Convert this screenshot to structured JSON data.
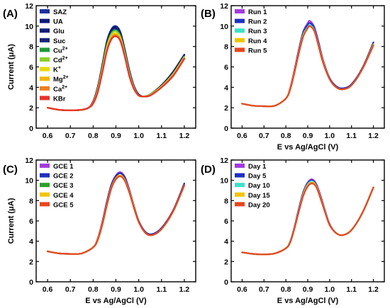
{
  "chart_data": [
    {
      "type": "line",
      "panel_label": "(A)",
      "xlabel": "",
      "ylabel": "Current (μA)",
      "xlim": [
        0.55,
        1.25
      ],
      "ylim": [
        0,
        12
      ],
      "xticks": [
        "0.6",
        "0.7",
        "0.8",
        "0.9",
        "1.0",
        "1.1",
        "1.2"
      ],
      "yticks": [
        "0",
        "2",
        "4",
        "6",
        "8",
        "10",
        "12"
      ],
      "legend_position": "top-left",
      "x": [
        0.6,
        0.65,
        0.7,
        0.75,
        0.78,
        0.8,
        0.82,
        0.84,
        0.86,
        0.88,
        0.9,
        0.92,
        0.94,
        0.96,
        0.98,
        1.0,
        1.02,
        1.05,
        1.1,
        1.15,
        1.2
      ],
      "series": [
        {
          "name": "SAZ",
          "color": "#1f2fa0",
          "values": [
            2.0,
            1.8,
            1.75,
            1.8,
            2.0,
            2.6,
            4.0,
            6.2,
            8.5,
            9.7,
            10.0,
            9.4,
            7.6,
            5.6,
            4.1,
            3.3,
            3.1,
            3.3,
            4.2,
            5.5,
            7.2
          ]
        },
        {
          "name": "UA",
          "color": "#0d1a7a",
          "values": [
            2.0,
            1.8,
            1.75,
            1.8,
            2.0,
            2.6,
            4.0,
            6.1,
            8.4,
            9.6,
            9.9,
            9.3,
            7.5,
            5.5,
            4.0,
            3.3,
            3.1,
            3.3,
            4.2,
            5.5,
            7.2
          ]
        },
        {
          "name": "Glu",
          "color": "#14207a",
          "values": [
            2.0,
            1.8,
            1.75,
            1.8,
            2.0,
            2.6,
            4.0,
            6.0,
            8.3,
            9.5,
            9.8,
            9.2,
            7.4,
            5.4,
            4.0,
            3.3,
            3.1,
            3.3,
            4.2,
            5.4,
            7.1
          ]
        },
        {
          "name": "Suc",
          "color": "#1a2478",
          "values": [
            2.0,
            1.8,
            1.75,
            1.8,
            2.0,
            2.6,
            3.9,
            6.0,
            8.2,
            9.4,
            9.7,
            9.1,
            7.3,
            5.4,
            4.0,
            3.3,
            3.1,
            3.3,
            4.2,
            5.4,
            7.1
          ]
        },
        {
          "name": "Cu2+",
          "color": "#1e9a3a",
          "values": [
            2.0,
            1.8,
            1.75,
            1.8,
            2.0,
            2.5,
            3.8,
            5.9,
            8.1,
            9.3,
            9.6,
            9.0,
            7.3,
            5.3,
            3.9,
            3.2,
            3.1,
            3.3,
            4.1,
            5.3,
            7.0
          ]
        },
        {
          "name": "Cd2+",
          "color": "#8ad12a",
          "values": [
            2.0,
            1.8,
            1.75,
            1.8,
            2.0,
            2.5,
            3.8,
            5.8,
            8.0,
            9.2,
            9.5,
            8.9,
            7.2,
            5.3,
            3.9,
            3.2,
            3.1,
            3.3,
            4.1,
            5.3,
            7.0
          ]
        },
        {
          "name": "K+",
          "color": "#e7d900",
          "values": [
            2.0,
            1.8,
            1.75,
            1.8,
            2.0,
            2.5,
            3.7,
            5.7,
            7.8,
            9.0,
            9.3,
            8.8,
            7.1,
            5.2,
            3.9,
            3.2,
            3.1,
            3.2,
            4.1,
            5.2,
            6.9
          ]
        },
        {
          "name": "Mg2+",
          "color": "#f2b600",
          "values": [
            2.0,
            1.8,
            1.75,
            1.8,
            2.0,
            2.5,
            3.7,
            5.6,
            7.7,
            8.9,
            9.2,
            8.7,
            7.0,
            5.1,
            3.8,
            3.2,
            3.1,
            3.2,
            4.0,
            5.2,
            6.9
          ]
        },
        {
          "name": "Ca2+",
          "color": "#f07d1c",
          "values": [
            2.0,
            1.8,
            1.75,
            1.8,
            2.0,
            2.5,
            3.6,
            5.5,
            7.6,
            8.8,
            9.1,
            8.6,
            6.9,
            5.1,
            3.8,
            3.2,
            3.1,
            3.2,
            4.0,
            5.1,
            6.8
          ]
        },
        {
          "name": "KBr",
          "color": "#e8322a",
          "values": [
            2.0,
            1.8,
            1.75,
            1.8,
            2.0,
            2.4,
            3.5,
            5.4,
            7.5,
            8.7,
            9.0,
            8.5,
            6.9,
            5.0,
            3.8,
            3.2,
            3.1,
            3.2,
            4.0,
            5.1,
            6.8
          ]
        }
      ]
    },
    {
      "type": "line",
      "panel_label": "(B)",
      "xlabel": "E vs Ag/AgCl (V)",
      "ylabel": "",
      "xlim": [
        0.55,
        1.25
      ],
      "ylim": [
        0,
        12
      ],
      "xticks": [
        "0.6",
        "0.7",
        "0.8",
        "0.9",
        "1.0",
        "1.1",
        "1.2"
      ],
      "yticks": [
        "0",
        "2",
        "4",
        "6",
        "8",
        "10",
        "12"
      ],
      "legend_position": "top-left",
      "x": [
        0.6,
        0.65,
        0.7,
        0.75,
        0.8,
        0.82,
        0.84,
        0.86,
        0.88,
        0.9,
        0.91,
        0.93,
        0.95,
        0.97,
        1.0,
        1.03,
        1.06,
        1.1,
        1.15,
        1.2
      ],
      "series": [
        {
          "name": "Run 1",
          "color": "#a23be0",
          "values": [
            2.4,
            2.2,
            2.15,
            2.2,
            2.9,
            4.0,
            5.8,
            7.8,
            9.5,
            10.3,
            10.5,
            9.9,
            8.4,
            6.7,
            4.9,
            4.1,
            3.9,
            4.3,
            5.9,
            8.4
          ]
        },
        {
          "name": "Run 2",
          "color": "#1f2fbf",
          "values": [
            2.4,
            2.2,
            2.15,
            2.2,
            2.9,
            3.9,
            5.7,
            7.7,
            9.4,
            10.1,
            10.3,
            9.8,
            8.3,
            6.6,
            4.9,
            4.1,
            3.9,
            4.3,
            5.9,
            8.4
          ]
        },
        {
          "name": "Run 3",
          "color": "#3fe0c8",
          "values": [
            2.4,
            2.2,
            2.15,
            2.2,
            2.9,
            3.9,
            5.6,
            7.5,
            9.2,
            9.9,
            10.1,
            9.6,
            8.1,
            6.5,
            4.8,
            4.0,
            3.8,
            4.2,
            5.8,
            8.2
          ]
        },
        {
          "name": "Run 4",
          "color": "#f2c400",
          "values": [
            2.4,
            2.2,
            2.15,
            2.2,
            2.9,
            3.9,
            5.6,
            7.5,
            9.1,
            9.8,
            10.0,
            9.5,
            8.1,
            6.5,
            4.8,
            4.0,
            3.8,
            4.2,
            5.8,
            8.2
          ]
        },
        {
          "name": "Run 5",
          "color": "#e8461e",
          "values": [
            2.4,
            2.2,
            2.15,
            2.2,
            2.9,
            3.8,
            5.5,
            7.4,
            9.0,
            9.8,
            10.0,
            9.5,
            8.0,
            6.4,
            4.8,
            4.0,
            3.8,
            4.2,
            5.8,
            8.1
          ]
        }
      ]
    },
    {
      "type": "line",
      "panel_label": "(C)",
      "xlabel": "E vs Ag/AgCl (V)",
      "ylabel": "Current (μA)",
      "xlim": [
        0.55,
        1.25
      ],
      "ylim": [
        0,
        12
      ],
      "xticks": [
        "0.6",
        "0.7",
        "0.8",
        "0.9",
        "1.0",
        "1.1",
        "1.2"
      ],
      "yticks": [
        "0",
        "2",
        "4",
        "6",
        "8",
        "10",
        "12"
      ],
      "legend_position": "top-left",
      "x": [
        0.6,
        0.65,
        0.7,
        0.75,
        0.8,
        0.82,
        0.84,
        0.86,
        0.88,
        0.9,
        0.92,
        0.94,
        0.96,
        0.98,
        1.0,
        1.03,
        1.06,
        1.1,
        1.15,
        1.2
      ],
      "series": [
        {
          "name": "GCE 1",
          "color": "#a23be0",
          "values": [
            3.0,
            2.8,
            2.75,
            2.8,
            3.4,
            4.3,
            5.9,
            7.9,
            9.6,
            10.5,
            10.8,
            10.3,
            9.0,
            7.4,
            6.0,
            4.9,
            4.7,
            5.3,
            7.0,
            9.6
          ]
        },
        {
          "name": "GCE 2",
          "color": "#1f2fbf",
          "values": [
            3.0,
            2.8,
            2.75,
            2.8,
            3.4,
            4.2,
            5.8,
            7.8,
            9.5,
            10.4,
            10.7,
            10.2,
            8.9,
            7.4,
            6.0,
            4.9,
            4.7,
            5.3,
            7.0,
            9.7
          ]
        },
        {
          "name": "GCE 3",
          "color": "#2aa02a",
          "values": [
            3.0,
            2.8,
            2.75,
            2.8,
            3.4,
            4.2,
            5.7,
            7.6,
            9.3,
            10.2,
            10.5,
            10.0,
            8.8,
            7.3,
            5.9,
            4.8,
            4.6,
            5.2,
            6.9,
            9.5
          ]
        },
        {
          "name": "GCE 4",
          "color": "#f2c400",
          "values": [
            3.0,
            2.8,
            2.75,
            2.8,
            3.4,
            4.2,
            5.7,
            7.6,
            9.3,
            10.2,
            10.5,
            10.0,
            8.8,
            7.3,
            5.9,
            4.8,
            4.6,
            5.2,
            6.9,
            9.5
          ]
        },
        {
          "name": "GCE 5",
          "color": "#e8461e",
          "values": [
            3.0,
            2.8,
            2.75,
            2.8,
            3.4,
            4.1,
            5.6,
            7.5,
            9.2,
            10.1,
            10.4,
            9.9,
            8.7,
            7.2,
            5.9,
            4.8,
            4.6,
            5.2,
            6.9,
            9.5
          ]
        }
      ]
    },
    {
      "type": "line",
      "panel_label": "(D)",
      "xlabel": "E vs Ag/AgCl (V)",
      "ylabel": "",
      "xlim": [
        0.55,
        1.25
      ],
      "ylim": [
        0,
        12
      ],
      "xticks": [
        "0.6",
        "0.7",
        "0.8",
        "0.9",
        "1.0",
        "1.1",
        "1.2"
      ],
      "yticks": [
        "0",
        "2",
        "4",
        "6",
        "8",
        "10",
        "12"
      ],
      "legend_position": "top-left",
      "x": [
        0.6,
        0.65,
        0.7,
        0.75,
        0.8,
        0.82,
        0.84,
        0.86,
        0.88,
        0.9,
        0.92,
        0.94,
        0.96,
        0.98,
        1.0,
        1.03,
        1.06,
        1.1,
        1.15,
        1.2
      ],
      "series": [
        {
          "name": "Day 1",
          "color": "#a23be0",
          "values": [
            2.9,
            2.75,
            2.7,
            2.8,
            3.3,
            4.0,
            5.5,
            7.3,
            8.9,
            9.8,
            10.1,
            9.6,
            8.4,
            7.0,
            5.7,
            4.8,
            4.6,
            5.1,
            6.8,
            9.3
          ]
        },
        {
          "name": "Day 5",
          "color": "#1f2fbf",
          "values": [
            2.9,
            2.75,
            2.7,
            2.8,
            3.3,
            4.0,
            5.4,
            7.2,
            8.8,
            9.7,
            10.0,
            9.5,
            8.3,
            6.9,
            5.6,
            4.8,
            4.6,
            5.1,
            6.8,
            9.3
          ]
        },
        {
          "name": "Day 10",
          "color": "#3fe0c8",
          "values": [
            2.9,
            2.75,
            2.7,
            2.8,
            3.3,
            4.0,
            5.4,
            7.1,
            8.7,
            9.6,
            9.9,
            9.4,
            8.2,
            6.9,
            5.6,
            4.8,
            4.6,
            5.1,
            6.8,
            9.3
          ]
        },
        {
          "name": "Day 15",
          "color": "#f2c400",
          "values": [
            2.9,
            2.75,
            2.7,
            2.8,
            3.3,
            3.9,
            5.3,
            7.0,
            8.6,
            9.5,
            9.8,
            9.4,
            8.2,
            6.8,
            5.6,
            4.8,
            4.6,
            5.1,
            6.8,
            9.3
          ]
        },
        {
          "name": "Day 20",
          "color": "#e8461e",
          "values": [
            2.9,
            2.75,
            2.7,
            2.8,
            3.3,
            3.9,
            5.3,
            7.0,
            8.5,
            9.4,
            9.7,
            9.3,
            8.1,
            6.8,
            5.6,
            4.8,
            4.6,
            5.1,
            6.8,
            9.3
          ]
        }
      ]
    }
  ]
}
